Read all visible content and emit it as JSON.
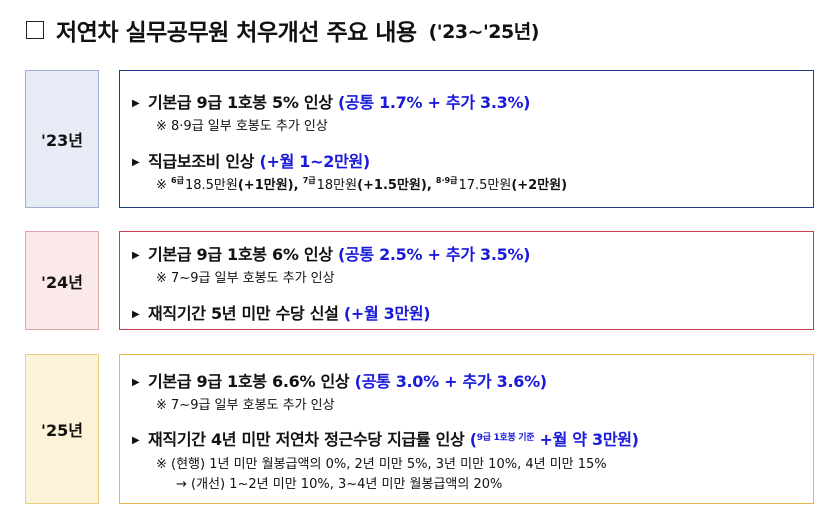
{
  "title": {
    "main": "저연차 실무공무원 처우개선 주요 내용",
    "period": "('23~'25년)"
  },
  "sections": [
    {
      "year": "'23년",
      "item1": {
        "text": "기본급 9급 1호봉 5% 인상",
        "highlight": "(공통 1.7% + 추가 3.3%)",
        "note": "※ 8·9급 일부 호봉도 추가 인상"
      },
      "item2": {
        "text": "직급보조비 인상",
        "highlight": "(+월 1~2만원)",
        "note_prefix": "※",
        "g1_sup": "6급",
        "g1_amount": "18.5만원",
        "g1_increase": "(+1만원),",
        "g2_sup": "7급",
        "g2_amount": "18만원",
        "g2_increase": "(+1.5만원),",
        "g3_sup": "8·9급",
        "g3_amount": "17.5만원",
        "g3_increase": "(+2만원)"
      }
    },
    {
      "year": "'24년",
      "item1": {
        "text": "기본급 9급 1호봉 6% 인상",
        "highlight": "(공통 2.5% + 추가 3.5%)",
        "note": "※ 7~9급 일부 호봉도 추가 인상"
      },
      "item2": {
        "text": "재직기간 5년 미만 수당 신설",
        "highlight": "(+월 3만원)"
      }
    },
    {
      "year": "'25년",
      "item1": {
        "text": "기본급 9급 1호봉 6.6% 인상",
        "highlight": "(공통 3.0% + 추가 3.6%)",
        "note": "※ 7~9급 일부 호봉도 추가 인상"
      },
      "item2": {
        "text": "재직기간 4년 미만 저연차 정근수당 지급률 인상",
        "highlight_open": "(",
        "highlight_sup": "9급 1호봉 기준",
        "highlight_rest": "+월 약 3만원)",
        "note1": "※ (현행) 1년 미만 월봉급액의 0%, 2년 미만 5%, 3년 미만 10%, 4년 미만 15%",
        "note2": "→ (개선) 1~2년 미만 10%, 3~4년 미만 월봉급액의 20%"
      }
    }
  ]
}
